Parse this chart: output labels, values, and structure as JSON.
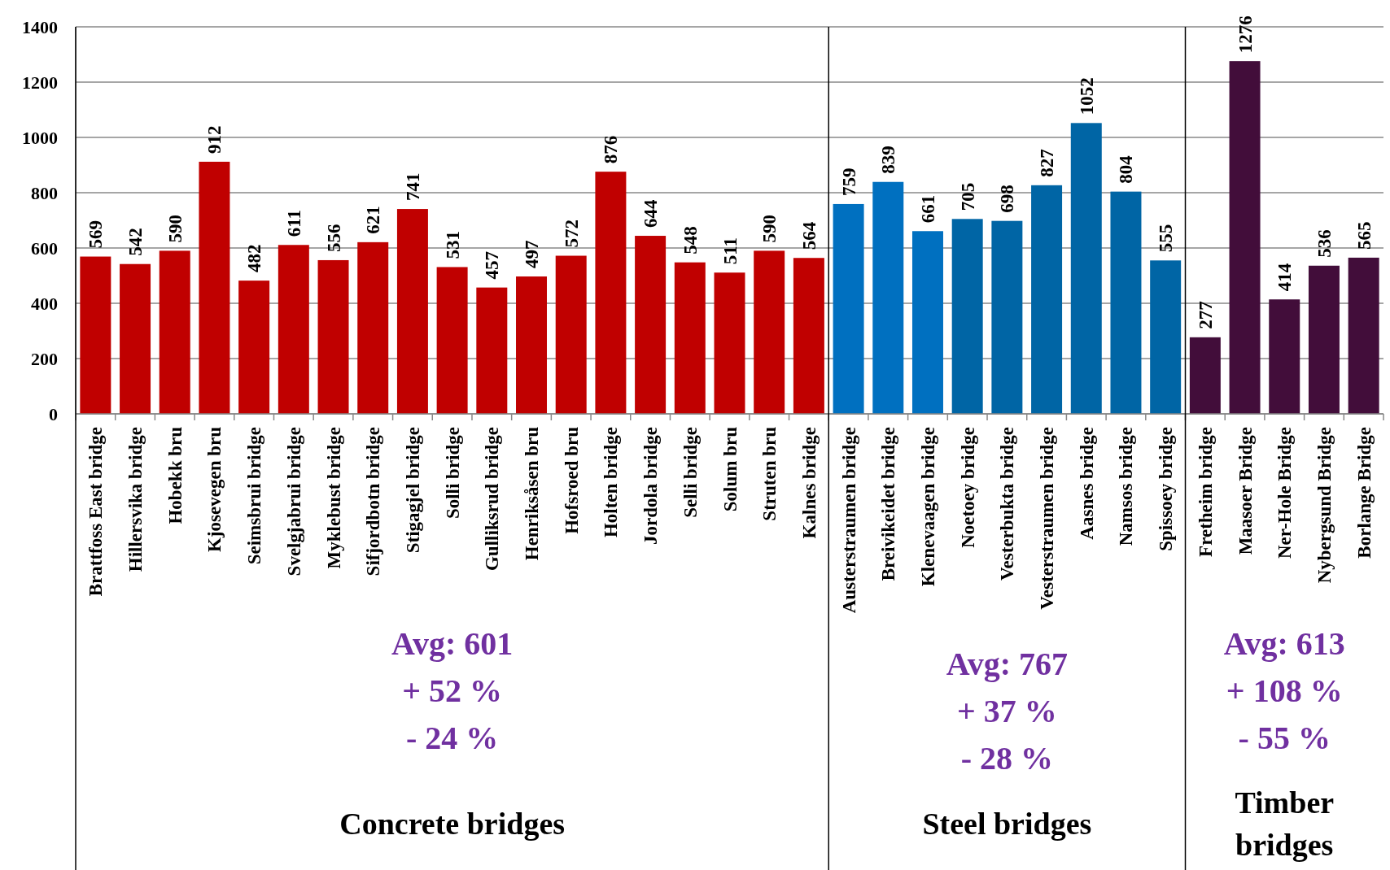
{
  "chart_data": {
    "type": "bar",
    "categories": [
      "Brattfoss East bridge",
      "Hillersvika bridge",
      "Hobekk bru",
      "Kjosevegen bru",
      "Seimsbrui bridge",
      "Svelgjabrui bridge",
      "Myklebust bridge",
      "Sifjordbotn bridge",
      "Stigagjel bridge",
      "Solli bridge",
      "Gulliksrud bridge",
      "Henriksåsen bru",
      "Hofsroed bru",
      "Holten bridge",
      "Jordola bridge",
      "Selli bridge",
      "Solum bru",
      "Struten bru",
      "Kalnes bridge",
      "Austerstraumen bridge",
      "Breivikeidet bridge",
      "Klenevaagen bridge",
      "Noetoey bridge",
      "Vesterbukta bridge",
      "Vesterstraumen bridge",
      "Aasnes bridge",
      "Namsos bridge",
      "Spissoey bridge",
      "Fretheim bridge",
      "Maasoer Bridge",
      "Ner-Hole Bridge",
      "Nybergsund Bridge",
      "Borlange Bridge"
    ],
    "values": [
      569,
      542,
      590,
      912,
      482,
      611,
      556,
      621,
      741,
      531,
      457,
      497,
      572,
      876,
      644,
      548,
      511,
      590,
      564,
      759,
      839,
      661,
      705,
      698,
      827,
      1052,
      804,
      555,
      277,
      1276,
      414,
      536,
      565
    ],
    "colors": [
      "#c00000",
      "#c00000",
      "#c00000",
      "#c00000",
      "#c00000",
      "#c00000",
      "#c00000",
      "#c00000",
      "#c00000",
      "#c00000",
      "#c00000",
      "#c00000",
      "#c00000",
      "#c00000",
      "#c00000",
      "#c00000",
      "#c00000",
      "#c00000",
      "#c00000",
      "#0070c0",
      "#0070c0",
      "#0070c0",
      "#0065a5",
      "#0065a5",
      "#0065a5",
      "#0065a5",
      "#0065a5",
      "#0065a5",
      "#420d3a",
      "#420d3a",
      "#420d3a",
      "#420d3a",
      "#420d3a"
    ],
    "ylim": [
      0,
      1400
    ],
    "yticks": [
      0,
      200,
      400,
      600,
      800,
      1000,
      1200,
      1400
    ],
    "grid": "y",
    "data_labels": true,
    "annotations": [
      "Avg: 601",
      "+ 52 %",
      "- 24 %",
      "Concrete bridges",
      "Avg: 767",
      "+ 37 %",
      "- 28 %",
      "Steel bridges",
      "Avg: 613",
      "+ 108 %",
      "- 55 %",
      "Timber bridges"
    ]
  }
}
